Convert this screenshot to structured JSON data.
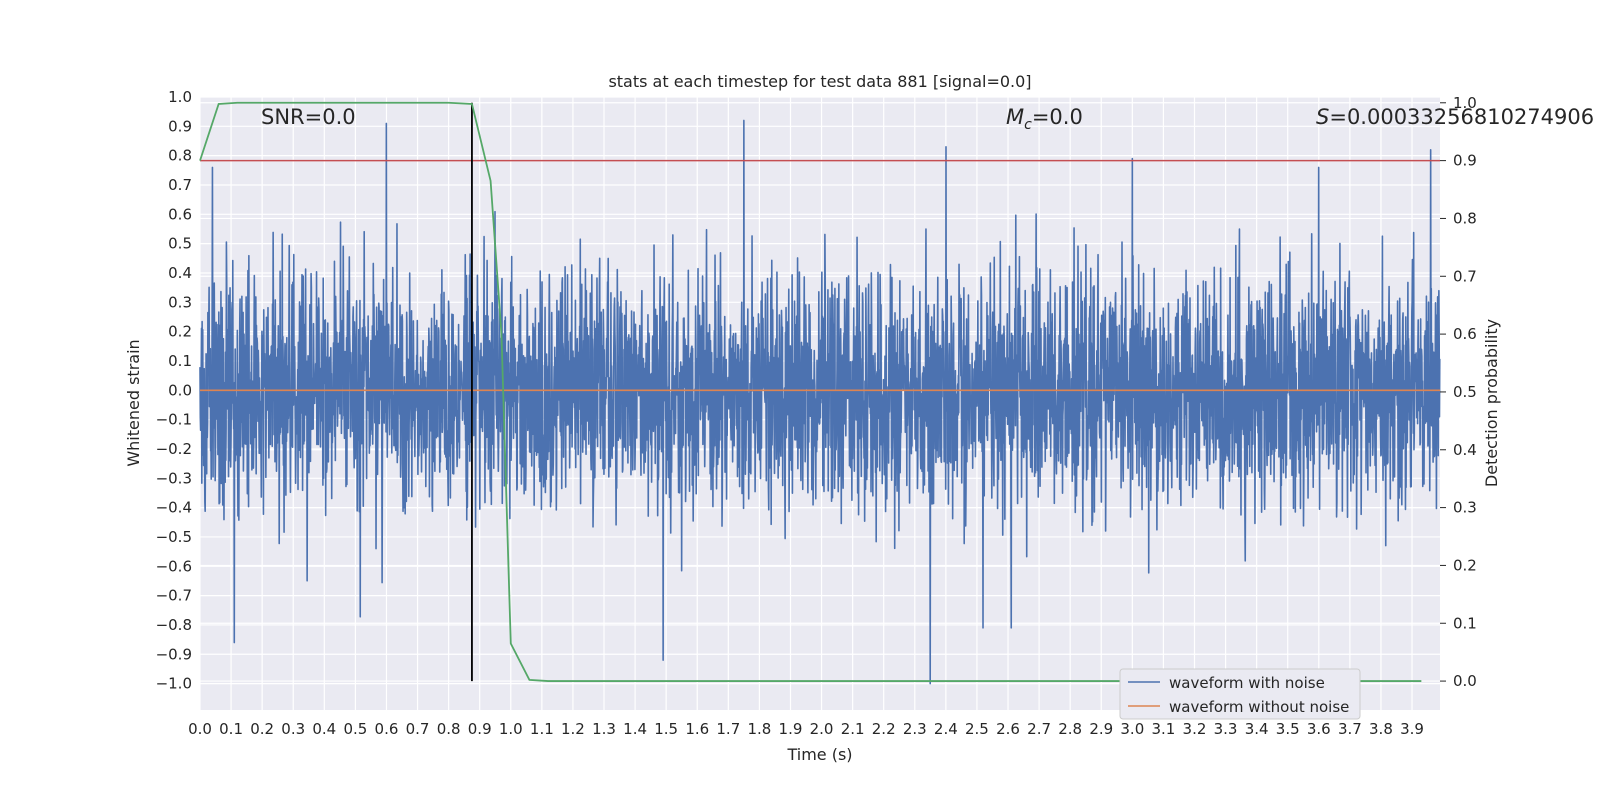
{
  "chart_data": {
    "type": "line",
    "title": "stats at each timestep for test data 881 [signal=0.0]",
    "xlabel": "Time (s)",
    "ylabel": "Whitened strain",
    "y2label": "Detection probability",
    "xlim": [
      0.0,
      3.99
    ],
    "ylim": [
      -1.09,
      1.0
    ],
    "y2lim": [
      -0.05,
      1.01
    ],
    "x_ticks": [
      "0.0",
      "0.1",
      "0.2",
      "0.3",
      "0.4",
      "0.5",
      "0.6",
      "0.7",
      "0.8",
      "0.9",
      "1.0",
      "1.1",
      "1.2",
      "1.3",
      "1.4",
      "1.5",
      "1.6",
      "1.7",
      "1.8",
      "1.9",
      "2.0",
      "2.1",
      "2.2",
      "2.3",
      "2.4",
      "2.5",
      "2.6",
      "2.7",
      "2.8",
      "2.9",
      "3.0",
      "3.1",
      "3.2",
      "3.3",
      "3.4",
      "3.5",
      "3.6",
      "3.7",
      "3.8",
      "3.9"
    ],
    "y_ticks": [
      "1.0",
      "0.9",
      "0.8",
      "0.7",
      "0.6",
      "0.5",
      "0.4",
      "0.3",
      "0.2",
      "0.1",
      "0.0",
      "−0.1",
      "−0.2",
      "−0.3",
      "−0.4",
      "−0.5",
      "−0.6",
      "−0.7",
      "−0.8",
      "−0.9",
      "−1.0"
    ],
    "y2_ticks": [
      "1.0",
      "0.9",
      "0.8",
      "0.7",
      "0.6",
      "0.5",
      "0.4",
      "0.3",
      "0.2",
      "0.1",
      "0.0"
    ],
    "grid": true,
    "annotations": {
      "snr": "SNR=0.0",
      "mc_base": "M",
      "mc_sub": "c",
      "mc_value": "=0.0",
      "s_label": "S",
      "s_value": "=0.00033256810274906"
    },
    "noisy_series": {
      "name": "waveform with noise",
      "color": "#4c72b0",
      "x_range": [
        0.0,
        3.99
      ],
      "sample_rate": 1024,
      "value_range": [
        -1.0,
        0.92
      ],
      "notable_peaks": [
        {
          "x": 0.6,
          "y": 0.91
        },
        {
          "x": 1.75,
          "y": 0.92
        },
        {
          "x": 2.4,
          "y": 0.83
        },
        {
          "x": 3.0,
          "y": 0.79
        },
        {
          "x": 3.6,
          "y": 0.76
        },
        {
          "x": 3.96,
          "y": 0.82
        },
        {
          "x": 0.04,
          "y": 0.76
        },
        {
          "x": 0.11,
          "y": -0.86
        },
        {
          "x": 1.49,
          "y": -0.92
        },
        {
          "x": 2.35,
          "y": -1.0
        },
        {
          "x": 2.52,
          "y": -0.81
        },
        {
          "x": 2.61,
          "y": -0.81
        }
      ]
    },
    "clean_series": {
      "name": "waveform without noise",
      "color": "#dd8452",
      "x": [
        0.0,
        3.99
      ],
      "y": [
        0.0,
        0.0
      ]
    },
    "probability_series": {
      "color": "#55a868",
      "x": [
        0.0,
        0.06,
        0.12,
        0.18,
        0.25,
        0.35,
        0.5,
        0.65,
        0.8,
        0.875,
        0.935,
        0.97,
        1.0,
        1.06,
        1.12,
        1.3,
        2.0,
        3.0,
        3.93
      ],
      "y": [
        0.9,
        0.998,
        1.0,
        1.0,
        1.0,
        1.0,
        1.0,
        1.0,
        1.0,
        0.998,
        0.865,
        0.6,
        0.065,
        0.002,
        0.0,
        0.0,
        0.0,
        0.0,
        0.0
      ]
    },
    "threshold_line": {
      "color": "#c44e52",
      "y2": 0.9
    },
    "marker_line": {
      "color": "#000000",
      "x": 0.875,
      "y2_range": [
        0.0,
        1.0
      ]
    },
    "legend": {
      "placement": "lower-right",
      "entries": [
        {
          "label": "waveform with noise",
          "color": "#4c72b0"
        },
        {
          "label": "waveform without noise",
          "color": "#dd8452"
        }
      ]
    }
  }
}
